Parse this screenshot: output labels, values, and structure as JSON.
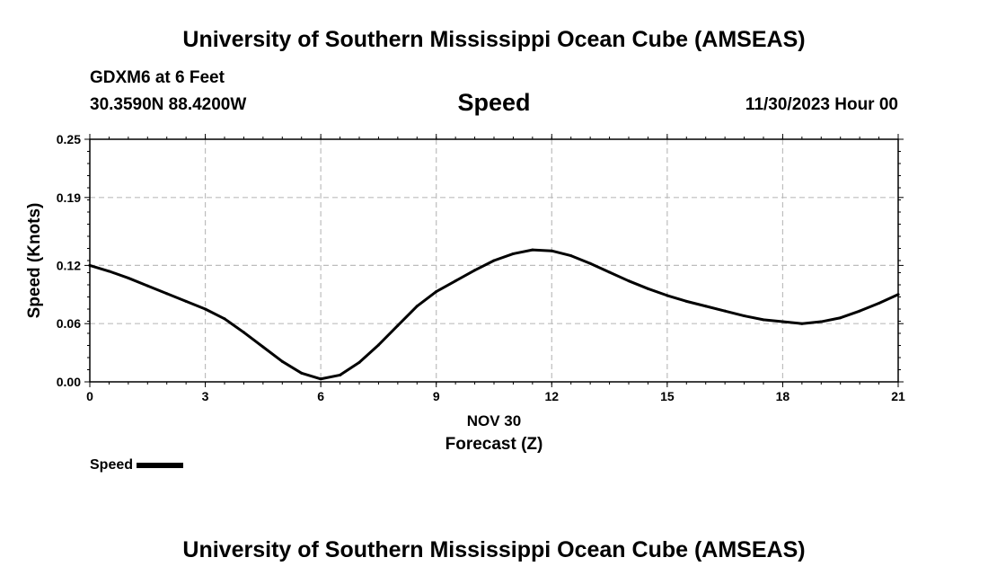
{
  "header": {
    "title": "University of Southern Mississippi Ocean Cube (AMSEAS)",
    "station": "GDXM6 at 6 Feet",
    "coords": "30.3590N  88.4200W",
    "variable": "Speed",
    "run_time": "11/30/2023 Hour 00"
  },
  "footer": {
    "title": "University of Southern Mississippi Ocean Cube (AMSEAS)"
  },
  "legend": {
    "label": "Speed",
    "color": "#000000"
  },
  "chart_data": {
    "type": "line",
    "title": "Speed",
    "xlabel": "Forecast (Z)",
    "xlabel_date": "NOV 30",
    "ylabel": "Speed (Knots)",
    "xlim": [
      0,
      21
    ],
    "ylim": [
      0,
      0.25
    ],
    "x_ticks": [
      0,
      3,
      6,
      9,
      12,
      15,
      18,
      21
    ],
    "y_ticks": [
      0.0,
      0.06,
      0.12,
      0.19,
      0.25
    ],
    "y_tick_labels": [
      "0.00",
      "0.06",
      "0.12",
      "0.19",
      "0.25"
    ],
    "grid": true,
    "legend_position": "bottom-left",
    "series": [
      {
        "name": "Speed",
        "color": "#000000",
        "x": [
          0,
          0.5,
          1,
          1.5,
          2,
          2.5,
          3,
          3.5,
          4,
          4.5,
          5,
          5.5,
          6,
          6.5,
          7,
          7.5,
          8,
          8.5,
          9,
          9.5,
          10,
          10.5,
          11,
          11.5,
          12,
          12.5,
          13,
          13.5,
          14,
          14.5,
          15,
          15.5,
          16,
          16.5,
          17,
          17.5,
          18,
          18.5,
          19,
          19.5,
          20,
          20.5,
          21
        ],
        "y": [
          0.12,
          0.114,
          0.107,
          0.099,
          0.091,
          0.083,
          0.075,
          0.065,
          0.051,
          0.036,
          0.021,
          0.009,
          0.003,
          0.007,
          0.02,
          0.038,
          0.058,
          0.078,
          0.093,
          0.104,
          0.115,
          0.125,
          0.132,
          0.136,
          0.135,
          0.13,
          0.122,
          0.113,
          0.104,
          0.096,
          0.089,
          0.083,
          0.078,
          0.073,
          0.068,
          0.064,
          0.062,
          0.06,
          0.062,
          0.066,
          0.073,
          0.081,
          0.09
        ]
      }
    ]
  }
}
